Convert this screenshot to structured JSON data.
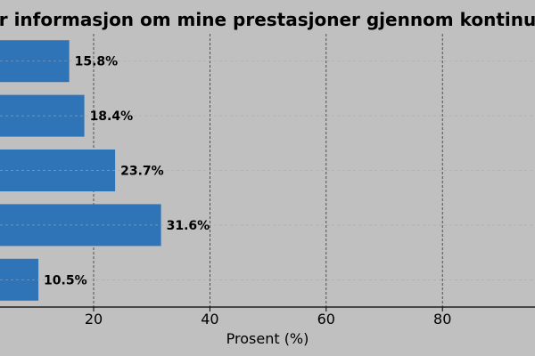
{
  "chart_data": {
    "type": "bar",
    "orientation": "horizontal",
    "title": "r informasjon om mine prestasjoner gjennom kontinu",
    "xlabel": "Prosent (%)",
    "ylabel": "",
    "xticks": [
      "20",
      "40",
      "60",
      "80"
    ],
    "xtick_values": [
      20,
      40,
      60,
      80
    ],
    "xlim": [
      0,
      95
    ],
    "values": [
      15.8,
      18.4,
      23.7,
      31.6,
      10.5
    ],
    "value_labels": [
      "15.8%",
      "18.4%",
      "23.7%",
      "31.6%",
      "10.5%"
    ],
    "grid": true,
    "colors": {
      "background": "#c0c0c0",
      "bar": "#2e74b7",
      "text": "#000000"
    }
  }
}
